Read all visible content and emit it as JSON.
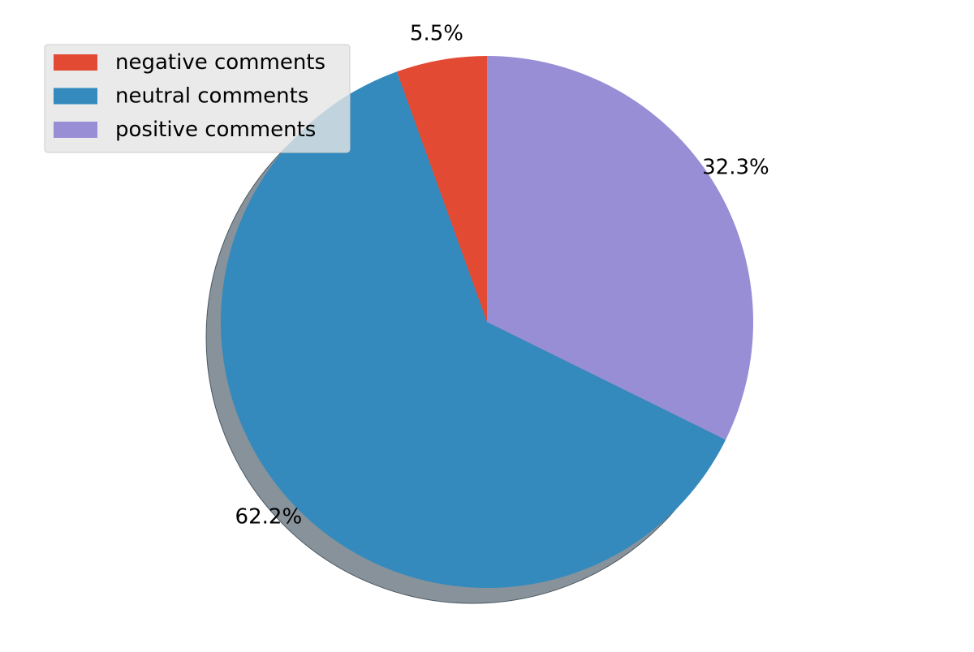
{
  "chart_data": {
    "type": "pie",
    "title": "",
    "start_angle_deg": 90,
    "direction": "counterclockwise",
    "shadow": true,
    "legend_position": "upper-left",
    "slices": [
      {
        "label": "negative comments",
        "value": 5.5,
        "pct_label": "5.5%",
        "color": "#E24A33"
      },
      {
        "label": "neutral comments",
        "value": 62.2,
        "pct_label": "62.2%",
        "color": "#348ABD"
      },
      {
        "label": "positive comments",
        "value": 32.3,
        "pct_label": "32.3%",
        "color": "#988ED5"
      }
    ]
  },
  "legend": {
    "items": [
      {
        "label": "negative comments",
        "color": "#E24A33"
      },
      {
        "label": "neutral comments",
        "color": "#348ABD"
      },
      {
        "label": "positive comments",
        "color": "#988ED5"
      }
    ]
  }
}
